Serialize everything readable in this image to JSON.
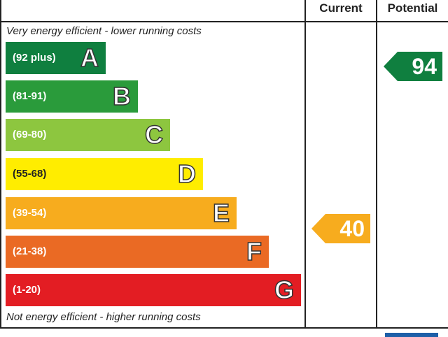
{
  "headers": {
    "current": "Current",
    "potential": "Potential"
  },
  "top_note": "Very energy efficient - lower running costs",
  "bottom_note": "Not energy efficient - higher running costs",
  "chart_data": {
    "type": "table",
    "bands": [
      {
        "range": "(92 plus)",
        "letter": "A",
        "color": "#0f7f3f"
      },
      {
        "range": "(81-91)",
        "letter": "B",
        "color": "#2a9b3b"
      },
      {
        "range": "(69-80)",
        "letter": "C",
        "color": "#8dc63f"
      },
      {
        "range": "(55-68)",
        "letter": "D",
        "color": "#ffed00"
      },
      {
        "range": "(39-54)",
        "letter": "E",
        "color": "#f7ac1e"
      },
      {
        "range": "(21-38)",
        "letter": "F",
        "color": "#ea6a24"
      },
      {
        "range": "(1-20)",
        "letter": "G",
        "color": "#e31d23"
      }
    ],
    "current": {
      "value": "40",
      "band": "E",
      "color": "#f7ac1e"
    },
    "potential": {
      "value": "94",
      "band": "A",
      "color": "#0f7f3f"
    }
  }
}
